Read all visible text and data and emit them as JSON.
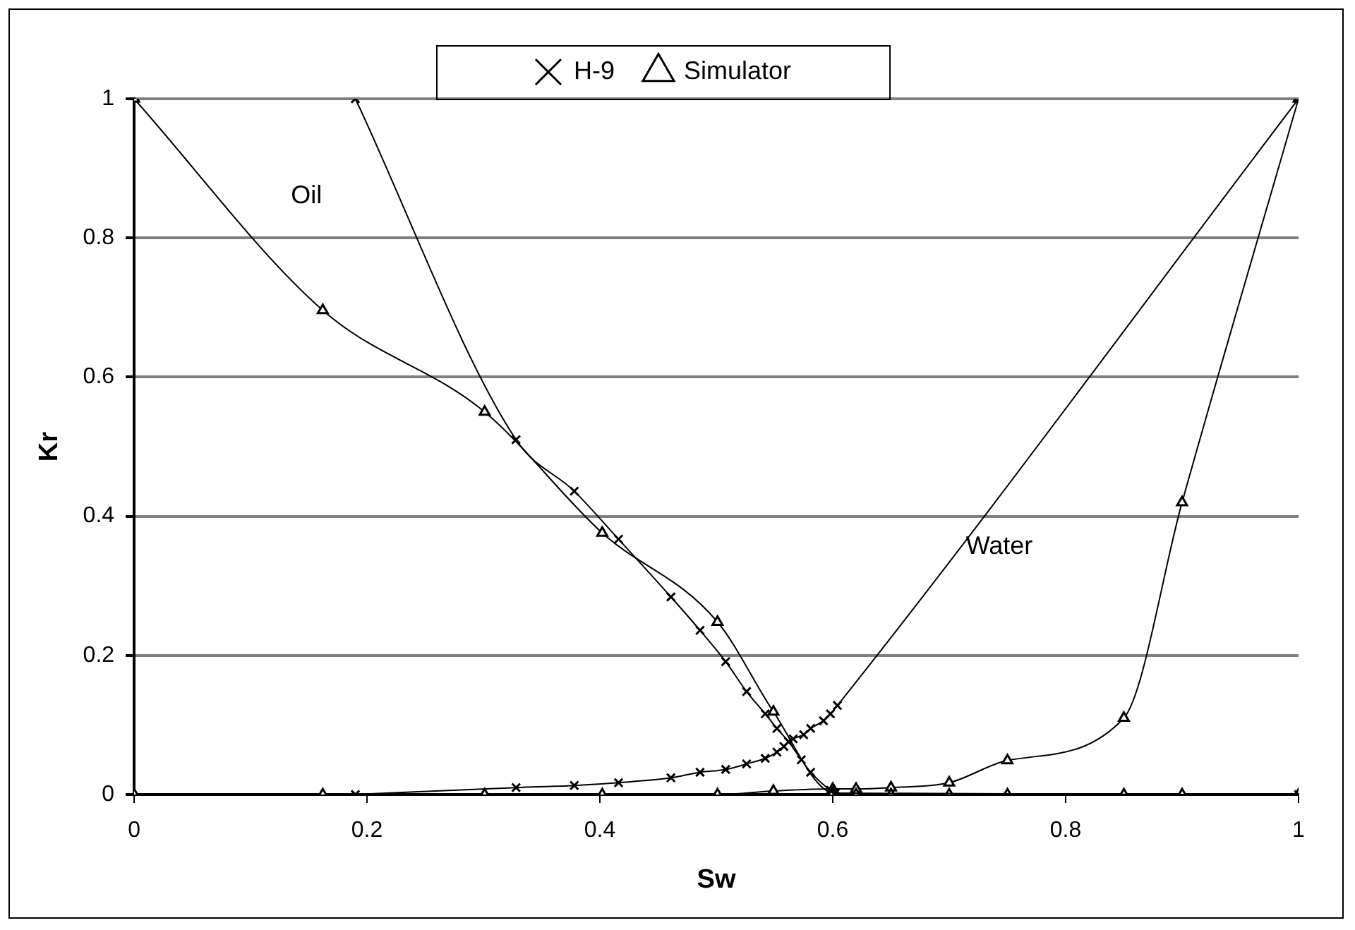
{
  "chart_data": {
    "type": "line",
    "xlabel": "Sw",
    "ylabel": "Kr",
    "xlim": [
      0,
      1
    ],
    "ylim": [
      0,
      1
    ],
    "xticks": [
      0,
      0.2,
      0.4,
      0.6,
      0.8,
      1
    ],
    "yticks": [
      0,
      0.2,
      0.4,
      0.6,
      0.8,
      1
    ],
    "grid": "y",
    "legend": "top",
    "line_style": "solid",
    "series": [
      {
        "name": "H-9",
        "color": "#000000",
        "marker": "cross",
        "x": [
          0.19,
          0.328,
          0.378,
          0.416,
          0.461,
          0.486,
          0.508,
          0.526,
          0.542,
          0.552,
          0.562,
          0.573,
          0.581,
          0.598,
          0.602,
          1
        ],
        "values": [
          1,
          0.51,
          0.436,
          0.367,
          0.284,
          0.236,
          0.191,
          0.148,
          0.116,
          0.095,
          0.076,
          0.05,
          0.032,
          0.006,
          0.002,
          0
        ]
      },
      {
        "color": "#000000",
        "marker": "cross",
        "x": [
          0.19,
          0.328,
          0.378,
          0.416,
          0.461,
          0.486,
          0.508,
          0.526,
          0.542,
          0.552,
          0.558,
          0.566,
          0.575,
          0.581,
          0.592,
          0.598,
          0.604,
          1
        ],
        "values": [
          0,
          0.01,
          0.013,
          0.017,
          0.024,
          0.032,
          0.036,
          0.044,
          0.052,
          0.061,
          0.069,
          0.08,
          0.086,
          0.095,
          0.106,
          0.116,
          0.128,
          1
        ]
      },
      {
        "name": "Simulator",
        "color": "#000000",
        "marker": "triangle",
        "x": [
          0,
          0.162,
          0.301,
          0.402,
          0.501,
          0.549,
          0.6,
          0.62,
          0.65,
          0.7,
          0.75,
          0.85,
          0.9,
          1
        ],
        "values": [
          1,
          0.696,
          0.55,
          0.376,
          0.248,
          0.119,
          0.002,
          0,
          0,
          0,
          0,
          0,
          0,
          0
        ]
      },
      {
        "color": "#000000",
        "marker": "triangle",
        "x": [
          0,
          0.162,
          0.301,
          0.402,
          0.501,
          0.549,
          0.6,
          0.62,
          0.65,
          0.7,
          0.75,
          0.85,
          0.9,
          1
        ],
        "values": [
          0,
          0,
          0,
          0,
          0,
          0.005,
          0.008,
          0.008,
          0.01,
          0.017,
          0.049,
          0.11,
          0.42,
          1
        ]
      }
    ],
    "annotations": [
      "Oil",
      "Water"
    ]
  }
}
